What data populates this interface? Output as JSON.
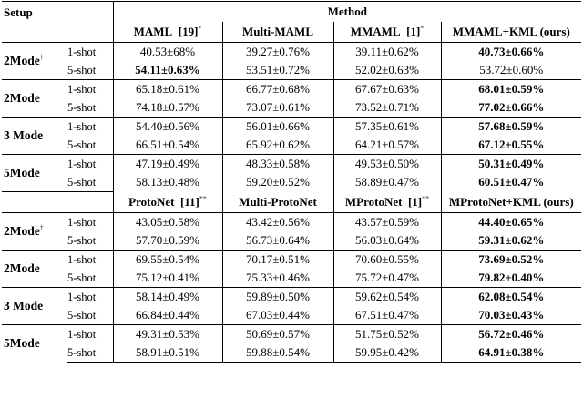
{
  "header": {
    "setup_label": "Setup",
    "method_label": "Method"
  },
  "sections": [
    {
      "methods": [
        {
          "name": "MAML",
          "ref": "[19]",
          "sup": "*"
        },
        {
          "name": "Multi-MAML",
          "ref": "",
          "sup": ""
        },
        {
          "name": "MMAML",
          "ref": "[1]",
          "sup": "*"
        },
        {
          "name": "MMAML+KML (ours)",
          "ref": "",
          "sup": ""
        }
      ],
      "groups": [
        {
          "mode": "2Mode",
          "mode_sup": "†",
          "rows": [
            {
              "shot": "1-shot",
              "values": [
                "40.53±68%",
                "39.27±0.76%",
                "39.11±0.62%",
                "40.73±0.66%"
              ],
              "bold": [
                false,
                false,
                false,
                true
              ]
            },
            {
              "shot": "5-shot",
              "values": [
                "54.11±0.63%",
                "53.51±0.72%",
                "52.02±0.63%",
                "53.72±0.60%"
              ],
              "bold": [
                true,
                false,
                false,
                false
              ]
            }
          ]
        },
        {
          "mode": "2Mode",
          "mode_sup": "",
          "rows": [
            {
              "shot": "1-shot",
              "values": [
                "65.18±0.61%",
                "66.77±0.68%",
                "67.67±0.63%",
                "68.01±0.59%"
              ],
              "bold": [
                false,
                false,
                false,
                true
              ]
            },
            {
              "shot": "5-shot",
              "values": [
                "74.18±0.57%",
                "73.07±0.61%",
                "73.52±0.71%",
                "77.02±0.66%"
              ],
              "bold": [
                false,
                false,
                false,
                true
              ]
            }
          ]
        },
        {
          "mode": "3 Mode",
          "mode_sup": "",
          "rows": [
            {
              "shot": "1-shot",
              "values": [
                "54.40±0.56%",
                "56.01±0.66%",
                "57.35±0.61%",
                "57.68±0.59%"
              ],
              "bold": [
                false,
                false,
                false,
                true
              ]
            },
            {
              "shot": "5-shot",
              "values": [
                "66.51±0.54%",
                "65.92±0.62%",
                "64.21±0.57%",
                "67.12±0.55%"
              ],
              "bold": [
                false,
                false,
                false,
                true
              ]
            }
          ]
        },
        {
          "mode": "5Mode",
          "mode_sup": "",
          "rows": [
            {
              "shot": "1-shot",
              "values": [
                "47.19±0.49%",
                "48.33±0.58%",
                "49.53±0.50%",
                "50.31±0.49%"
              ],
              "bold": [
                false,
                false,
                false,
                true
              ]
            },
            {
              "shot": "5-shot",
              "values": [
                "58.13±0.48%",
                "59.20±0.52%",
                "58.89±0.47%",
                "60.51±0.47%"
              ],
              "bold": [
                false,
                false,
                false,
                true
              ]
            }
          ]
        }
      ]
    },
    {
      "methods": [
        {
          "name": "ProtoNet",
          "ref": "[11]",
          "sup": "**"
        },
        {
          "name": "Multi-ProtoNet",
          "ref": "",
          "sup": ""
        },
        {
          "name": "MProtoNet",
          "ref": "[1]",
          "sup": "**"
        },
        {
          "name": "MProtoNet+KML (ours)",
          "ref": "",
          "sup": ""
        }
      ],
      "groups": [
        {
          "mode": "2Mode",
          "mode_sup": "†",
          "rows": [
            {
              "shot": "1-shot",
              "values": [
                "43.05±0.58%",
                "43.42±0.56%",
                "43.57±0.59%",
                "44.40±0.65%"
              ],
              "bold": [
                false,
                false,
                false,
                true
              ]
            },
            {
              "shot": "5-shot",
              "values": [
                "57.70±0.59%",
                "56.73±0.64%",
                "56.03±0.64%",
                "59.31±0.62%"
              ],
              "bold": [
                false,
                false,
                false,
                true
              ]
            }
          ]
        },
        {
          "mode": "2Mode",
          "mode_sup": "",
          "rows": [
            {
              "shot": "1-shot",
              "values": [
                "69.55±0.54%",
                "70.17±0.51%",
                "70.60±0.55%",
                "73.69±0.52%"
              ],
              "bold": [
                false,
                false,
                false,
                true
              ]
            },
            {
              "shot": "5-shot",
              "values": [
                "75.12±0.41%",
                "75.33±0.46%",
                "75.72±0.47%",
                "79.82±0.40%"
              ],
              "bold": [
                false,
                false,
                false,
                true
              ]
            }
          ]
        },
        {
          "mode": "3 Mode",
          "mode_sup": "",
          "rows": [
            {
              "shot": "1-shot",
              "values": [
                "58.14±0.49%",
                "59.89±0.50%",
                "59.62±0.54%",
                "62.08±0.54%"
              ],
              "bold": [
                false,
                false,
                false,
                true
              ]
            },
            {
              "shot": "5-shot",
              "values": [
                "66.84±0.44%",
                "67.03±0.44%",
                "67.51±0.47%",
                "70.03±0.43%"
              ],
              "bold": [
                false,
                false,
                false,
                true
              ]
            }
          ]
        },
        {
          "mode": "5Mode",
          "mode_sup": "",
          "rows": [
            {
              "shot": "1-shot",
              "values": [
                "49.31±0.53%",
                "50.69±0.57%",
                "51.75±0.52%",
                "56.72±0.46%"
              ],
              "bold": [
                false,
                false,
                false,
                true
              ]
            },
            {
              "shot": "5-shot",
              "values": [
                "58.91±0.51%",
                "59.88±0.54%",
                "59.95±0.42%",
                "64.91±0.38%"
              ],
              "bold": [
                false,
                false,
                false,
                true
              ]
            }
          ]
        }
      ]
    }
  ]
}
